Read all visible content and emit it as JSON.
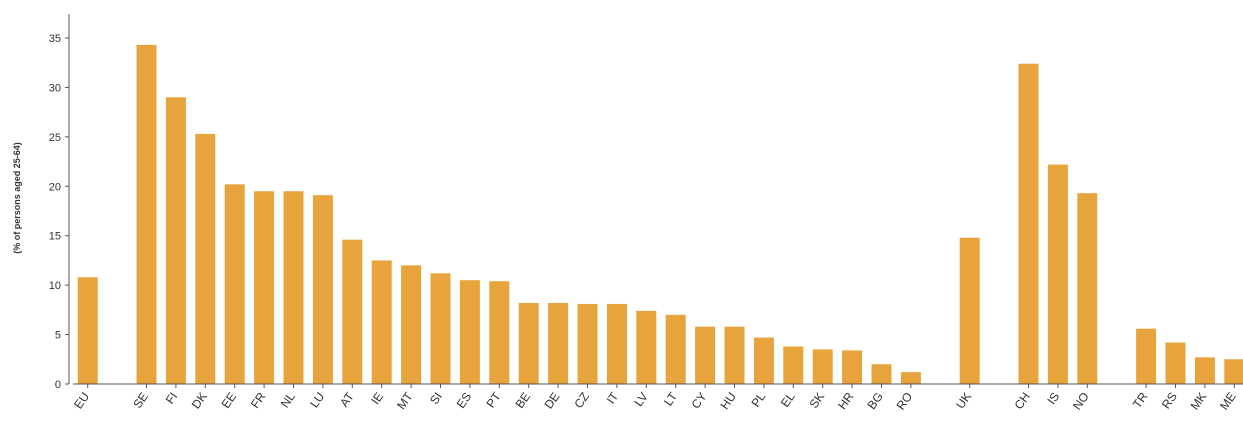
{
  "chart_data": {
    "type": "bar",
    "ylabel": "(% of persons aged 25-64)",
    "ylim": [
      0,
      37
    ],
    "yticks": [
      0,
      5,
      10,
      15,
      20,
      25,
      30,
      35
    ],
    "grid": false,
    "bar_color": "#E8A43C",
    "groups": [
      {
        "categories": [
          "EU"
        ],
        "values": [
          10.8
        ]
      },
      {
        "categories": [
          "SE",
          "FI",
          "DK",
          "EE",
          "FR",
          "NL",
          "LU",
          "AT",
          "IE",
          "MT",
          "SI",
          "ES",
          "PT",
          "BE",
          "DE",
          "CZ",
          "IT",
          "LV",
          "LT",
          "CY",
          "HU",
          "PL",
          "EL",
          "SK",
          "HR",
          "BG",
          "RO"
        ],
        "values": [
          34.3,
          29.0,
          25.3,
          20.2,
          19.5,
          19.5,
          19.1,
          14.6,
          12.5,
          12.0,
          11.2,
          10.5,
          10.4,
          8.2,
          8.2,
          8.1,
          8.1,
          7.4,
          7.0,
          5.8,
          5.8,
          4.7,
          3.8,
          3.5,
          3.4,
          2.0,
          1.2
        ]
      },
      {
        "categories": [
          "UK"
        ],
        "values": [
          14.8
        ]
      },
      {
        "categories": [
          "CH",
          "IS",
          "NO"
        ],
        "values": [
          32.4,
          22.2,
          19.3
        ]
      },
      {
        "categories": [
          "TR",
          "RS",
          "MK",
          "ME"
        ],
        "values": [
          5.6,
          4.2,
          2.7,
          2.5
        ]
      }
    ]
  }
}
